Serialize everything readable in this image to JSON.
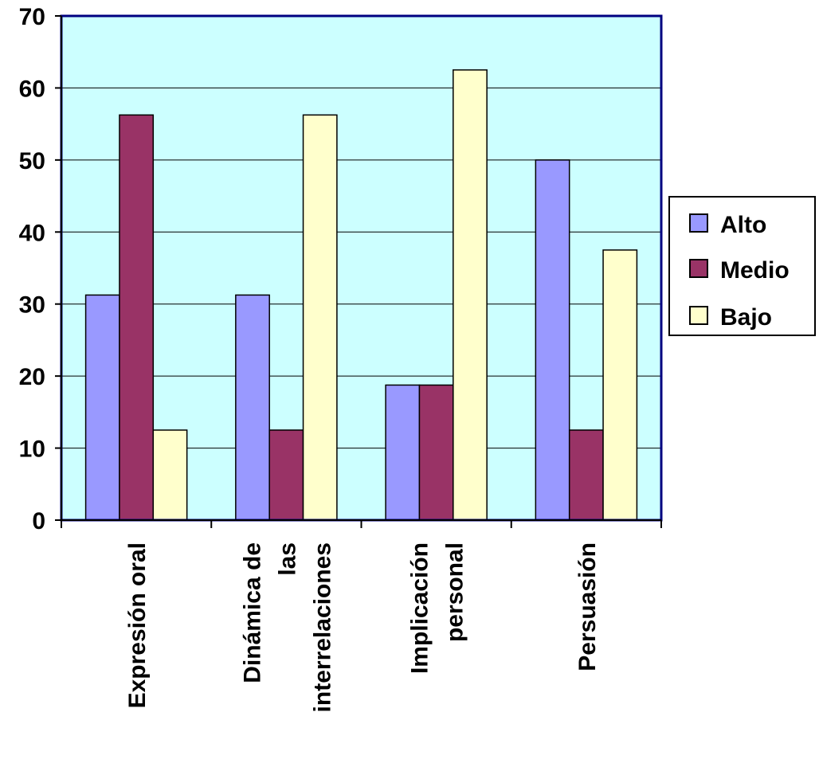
{
  "chart_data": {
    "type": "bar",
    "categories": [
      [
        "Expresión oral"
      ],
      [
        "Dinámica de",
        "las",
        "interrelaciones"
      ],
      [
        "Implicación",
        "personal"
      ],
      [
        "Persuasión"
      ]
    ],
    "series": [
      {
        "name": "Alto",
        "color": "#9999ff",
        "values": [
          31.25,
          31.25,
          18.75,
          50
        ]
      },
      {
        "name": "Medio",
        "color": "#993366",
        "values": [
          56.25,
          12.5,
          18.75,
          12.5
        ]
      },
      {
        "name": "Bajo",
        "color": "#ffffcc",
        "values": [
          12.5,
          56.25,
          62.5,
          37.5
        ]
      }
    ],
    "ylim": [
      0,
      70
    ],
    "yticks": [
      "0",
      "10",
      "20",
      "30",
      "40",
      "50",
      "60",
      "70"
    ],
    "plot_background": "#ccffff",
    "grid": true,
    "legend_position": "right"
  }
}
